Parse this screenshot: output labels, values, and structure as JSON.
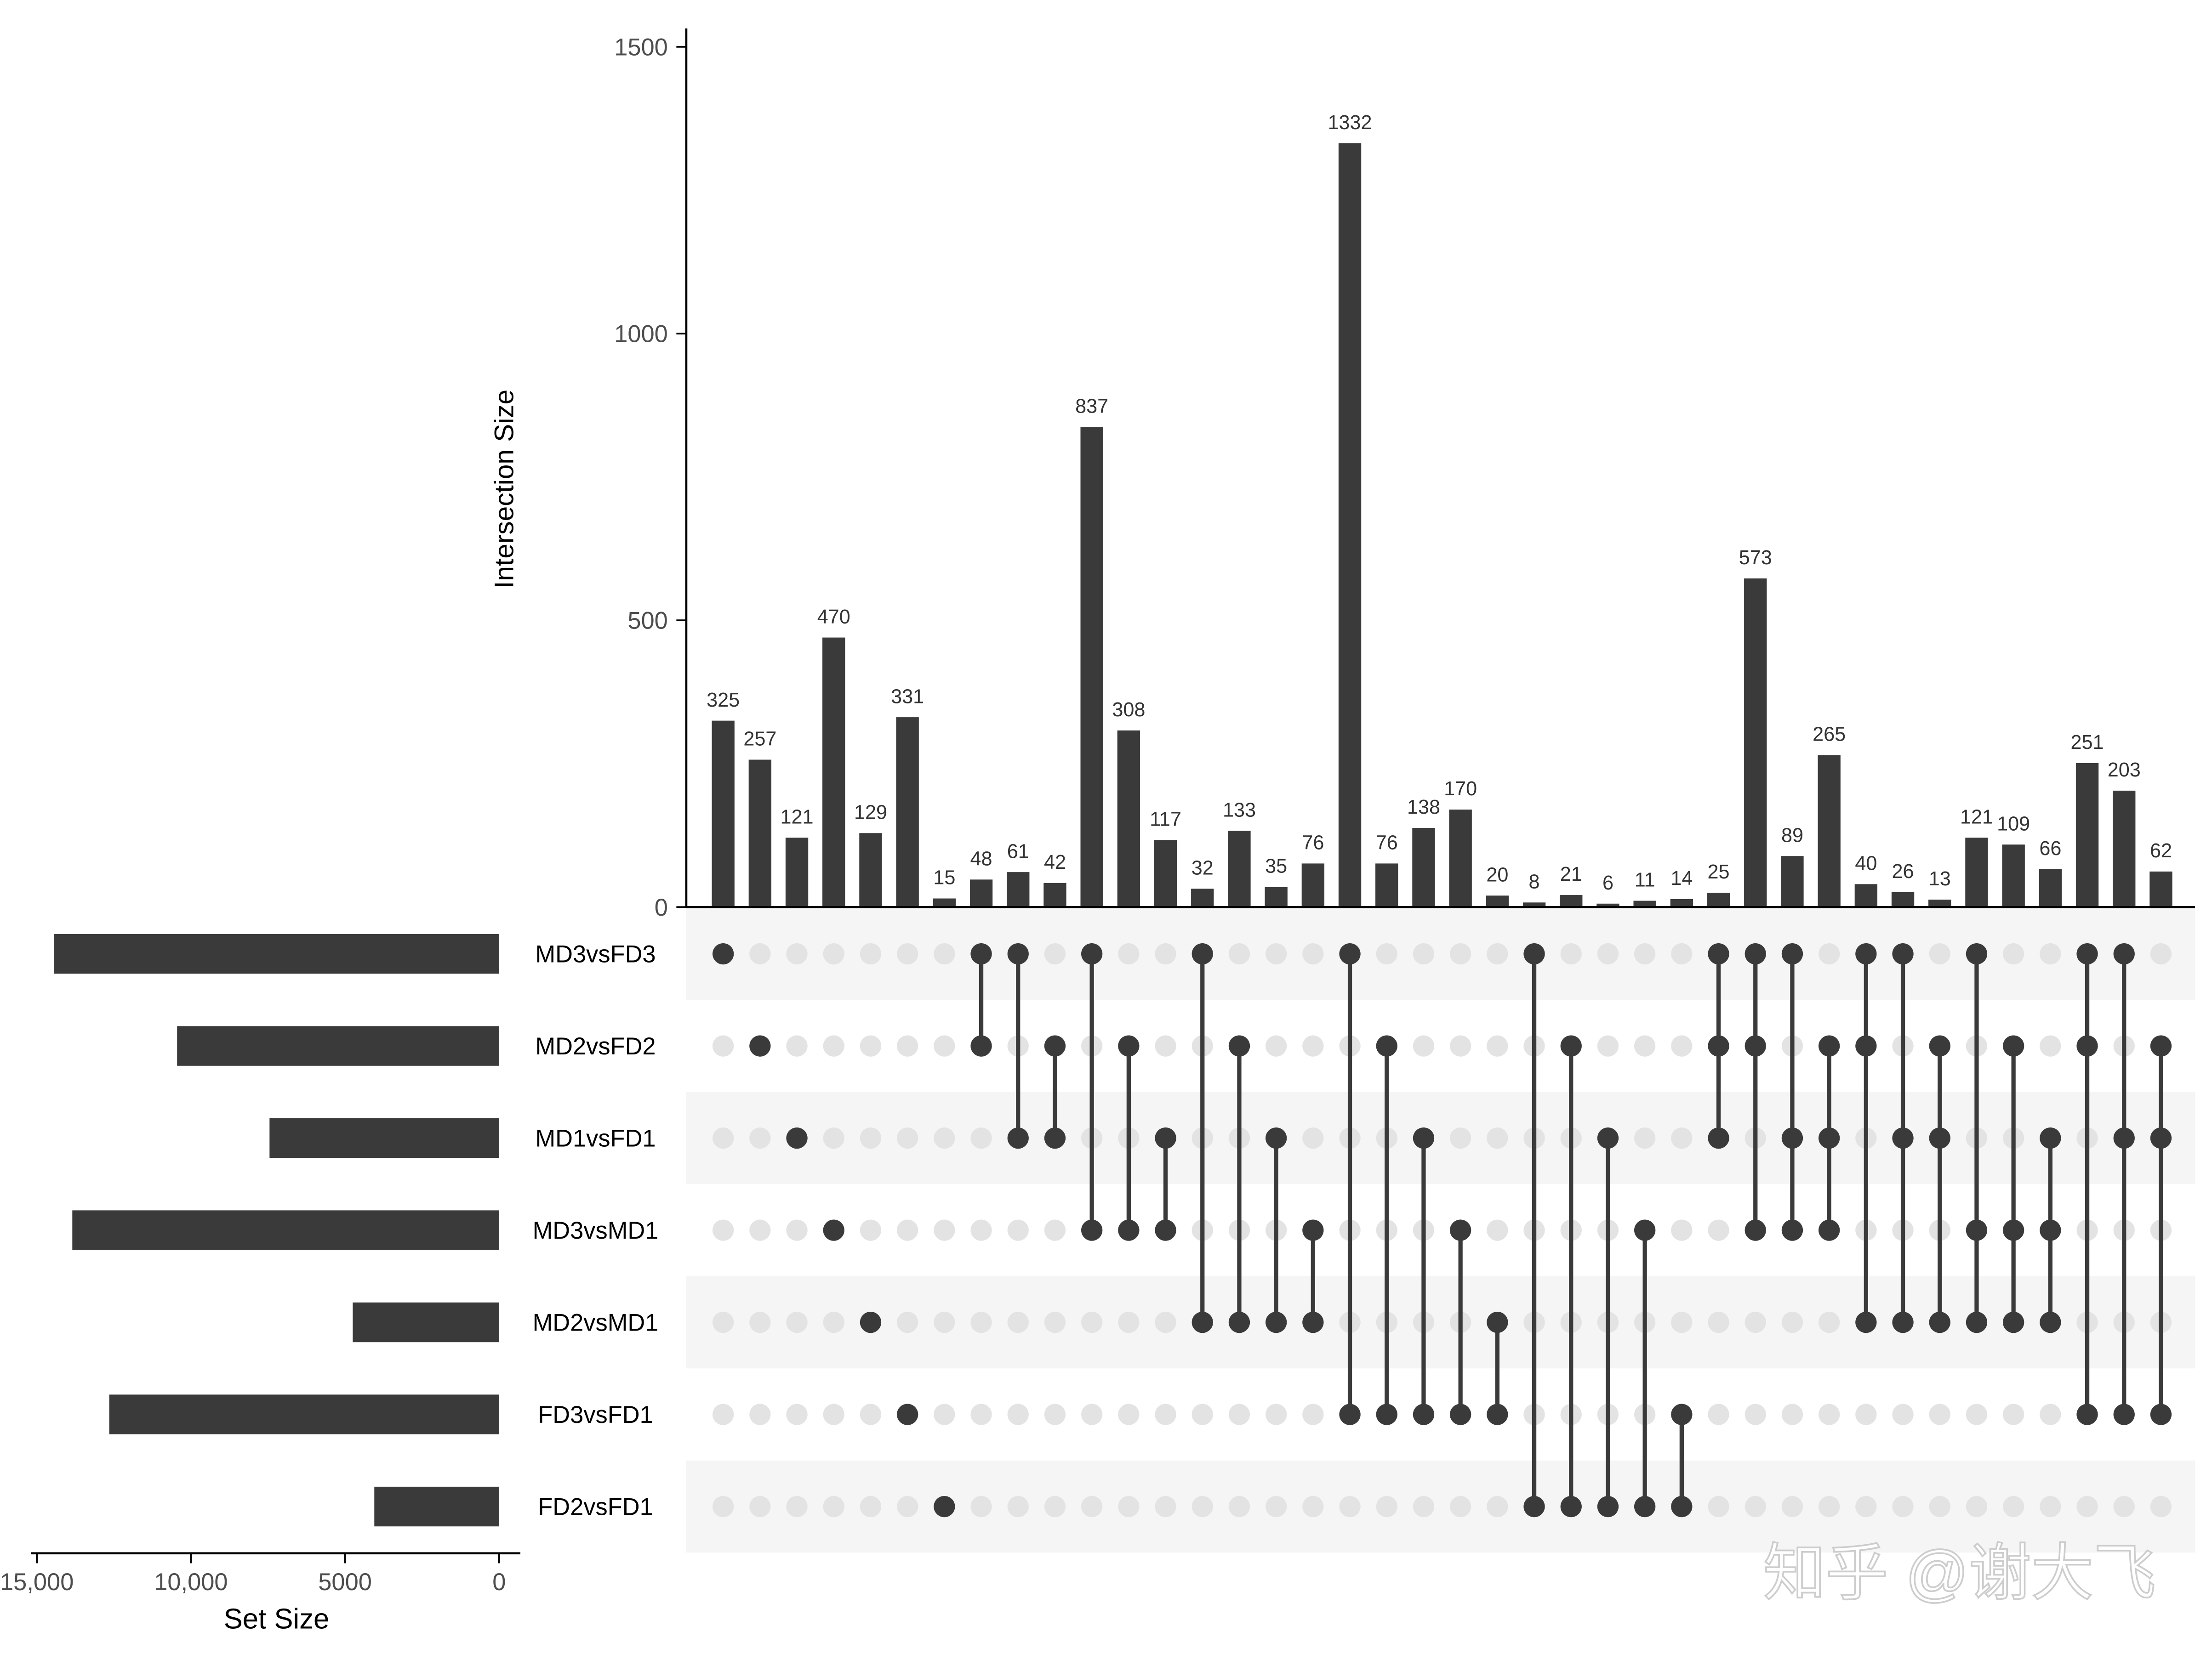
{
  "chart_data": {
    "type": "bar",
    "subtype": "upset",
    "ylabel": "Intersection Size",
    "ylim": [
      0,
      1500
    ],
    "yticks": [
      0,
      500,
      1000,
      1500
    ],
    "set_size_label": "Set Size",
    "set_size_ticks": [
      15000,
      10000,
      5000,
      0
    ],
    "set_size_tick_labels": [
      "15,000",
      "10,000",
      "5000",
      "0"
    ],
    "sets": [
      "MD3vsFD3",
      "MD2vsFD2",
      "MD1vsFD1",
      "MD3vsMD1",
      "MD2vsMD1",
      "FD3vsFD1",
      "FD2vsFD1"
    ],
    "set_sizes": [
      14450,
      10450,
      7450,
      13850,
      4750,
      12650,
      4050
    ],
    "intersections": [
      {
        "sets": [
          "MD3vsFD3"
        ],
        "value": 325
      },
      {
        "sets": [
          "MD2vsFD2"
        ],
        "value": 257
      },
      {
        "sets": [
          "MD1vsFD1"
        ],
        "value": 121
      },
      {
        "sets": [
          "MD3vsMD1"
        ],
        "value": 470
      },
      {
        "sets": [
          "MD2vsMD1"
        ],
        "value": 129
      },
      {
        "sets": [
          "FD3vsFD1"
        ],
        "value": 331
      },
      {
        "sets": [
          "FD2vsFD1"
        ],
        "value": 15
      },
      {
        "sets": [
          "MD3vsFD3",
          "MD2vsFD2"
        ],
        "value": 48
      },
      {
        "sets": [
          "MD3vsFD3",
          "MD1vsFD1"
        ],
        "value": 61
      },
      {
        "sets": [
          "MD2vsFD2",
          "MD1vsFD1"
        ],
        "value": 42
      },
      {
        "sets": [
          "MD3vsFD3",
          "MD3vsMD1"
        ],
        "value": 837
      },
      {
        "sets": [
          "MD2vsFD2",
          "MD3vsMD1"
        ],
        "value": 308
      },
      {
        "sets": [
          "MD1vsFD1",
          "MD3vsMD1"
        ],
        "value": 117
      },
      {
        "sets": [
          "MD3vsFD3",
          "MD2vsMD1"
        ],
        "value": 32
      },
      {
        "sets": [
          "MD2vsFD2",
          "MD2vsMD1"
        ],
        "value": 133
      },
      {
        "sets": [
          "MD1vsFD1",
          "MD2vsMD1"
        ],
        "value": 35
      },
      {
        "sets": [
          "MD3vsMD1",
          "MD2vsMD1"
        ],
        "value": 76
      },
      {
        "sets": [
          "MD3vsFD3",
          "FD3vsFD1"
        ],
        "value": 1332
      },
      {
        "sets": [
          "MD2vsFD2",
          "FD3vsFD1"
        ],
        "value": 76
      },
      {
        "sets": [
          "MD1vsFD1",
          "FD3vsFD1"
        ],
        "value": 138
      },
      {
        "sets": [
          "MD3vsMD1",
          "FD3vsFD1"
        ],
        "value": 170
      },
      {
        "sets": [
          "MD2vsMD1",
          "FD3vsFD1"
        ],
        "value": 20
      },
      {
        "sets": [
          "MD3vsFD3",
          "FD2vsFD1"
        ],
        "value": 8
      },
      {
        "sets": [
          "MD2vsFD2",
          "FD2vsFD1"
        ],
        "value": 21
      },
      {
        "sets": [
          "MD1vsFD1",
          "FD2vsFD1"
        ],
        "value": 6
      },
      {
        "sets": [
          "MD3vsMD1",
          "FD2vsFD1"
        ],
        "value": 11
      },
      {
        "sets": [
          "FD3vsFD1",
          "FD2vsFD1"
        ],
        "value": 14
      },
      {
        "sets": [
          "MD3vsFD3",
          "MD2vsFD2",
          "MD1vsFD1"
        ],
        "value": 25
      },
      {
        "sets": [
          "MD3vsFD3",
          "MD2vsFD2",
          "MD3vsMD1"
        ],
        "value": 573
      },
      {
        "sets": [
          "MD3vsFD3",
          "MD1vsFD1",
          "MD3vsMD1"
        ],
        "value": 89
      },
      {
        "sets": [
          "MD2vsFD2",
          "MD1vsFD1",
          "MD3vsMD1"
        ],
        "value": 265
      },
      {
        "sets": [
          "MD3vsFD3",
          "MD2vsFD2",
          "MD2vsMD1"
        ],
        "value": 40
      },
      {
        "sets": [
          "MD3vsFD3",
          "MD1vsFD1",
          "MD2vsMD1"
        ],
        "value": 26
      },
      {
        "sets": [
          "MD2vsFD2",
          "MD1vsFD1",
          "MD2vsMD1"
        ],
        "value": 13
      },
      {
        "sets": [
          "MD3vsFD3",
          "MD3vsMD1",
          "MD2vsMD1"
        ],
        "value": 121
      },
      {
        "sets": [
          "MD2vsFD2",
          "MD3vsMD1",
          "MD2vsMD1"
        ],
        "value": 109
      },
      {
        "sets": [
          "MD1vsFD1",
          "MD3vsMD1",
          "MD2vsMD1"
        ],
        "value": 66
      },
      {
        "sets": [
          "MD3vsFD3",
          "MD2vsFD2",
          "FD3vsFD1"
        ],
        "value": 251
      },
      {
        "sets": [
          "MD3vsFD3",
          "MD1vsFD1",
          "FD3vsFD1"
        ],
        "value": 203
      },
      {
        "sets": [
          "MD2vsFD2",
          "MD1vsFD1",
          "FD3vsFD1"
        ],
        "value": 62
      }
    ],
    "colors": {
      "bar": "#3a3a3a",
      "dot_off": "#e3e3e3",
      "stripe": "#f5f5f5"
    }
  },
  "watermark": "知乎 @谢大飞"
}
